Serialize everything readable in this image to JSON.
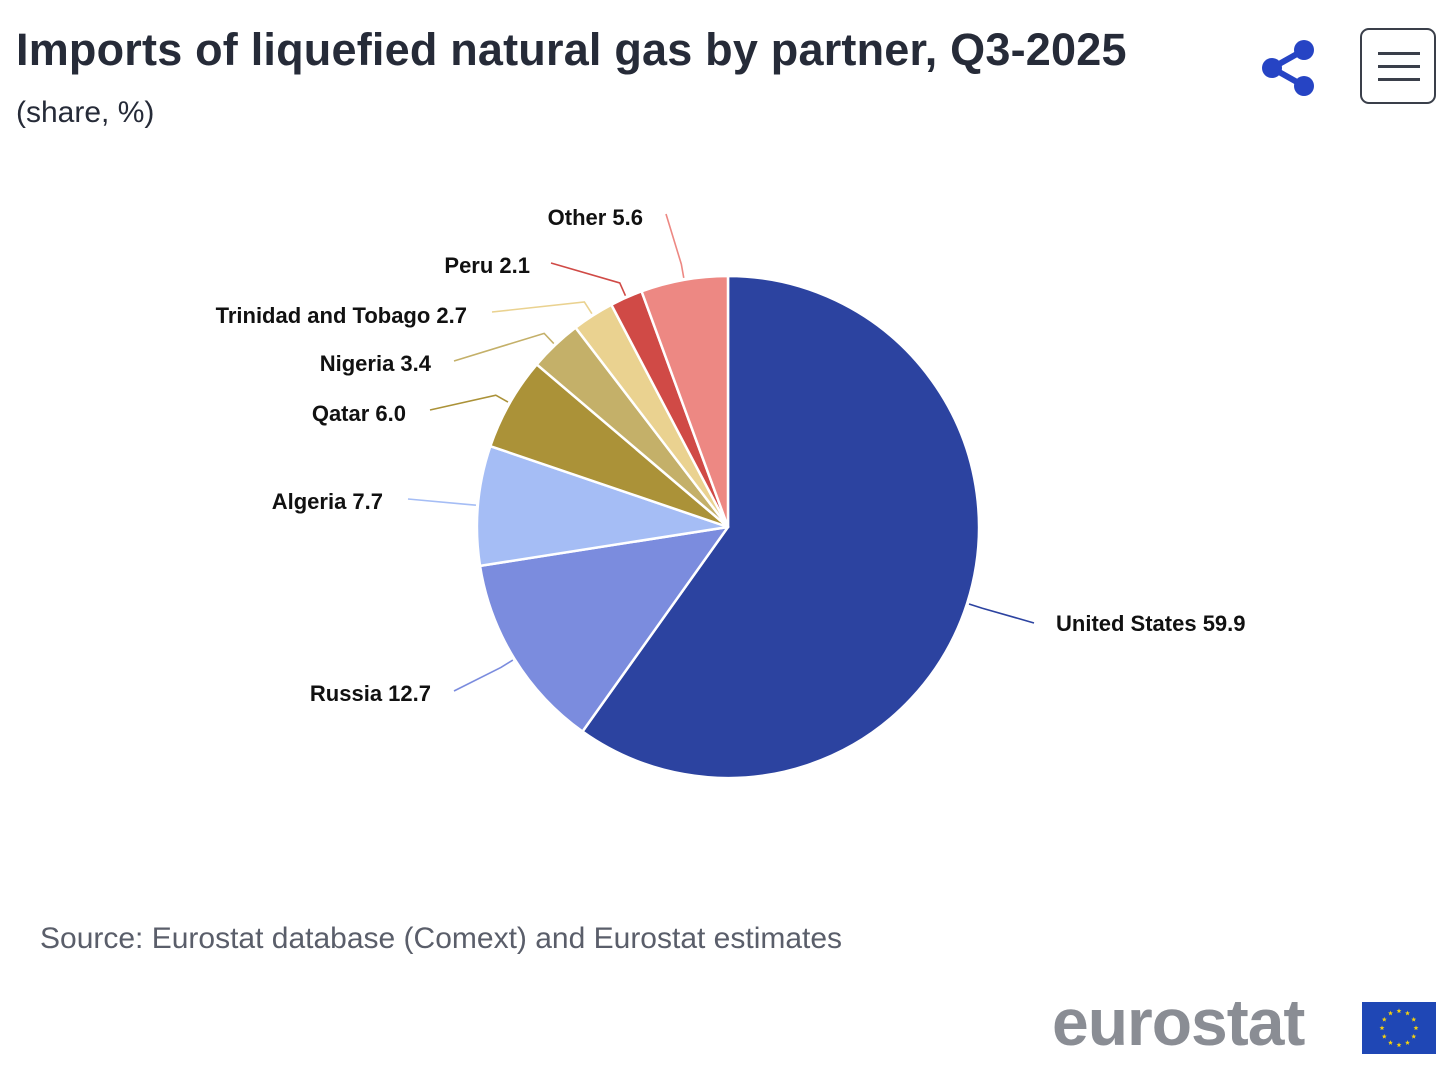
{
  "header": {
    "title": "Imports of liquefied natural gas by partner, Q3-2025",
    "subtitle": "(share, %)"
  },
  "icons": {
    "share": "share-icon",
    "menu": "hamburger-menu-icon"
  },
  "source": "Source: Eurostat database (Comext) and Eurostat estimates",
  "logo": {
    "text": "eurostat",
    "flag": "eu-flag-icon"
  },
  "chart_data": {
    "type": "pie",
    "title": "Imports of liquefied natural gas by partner, Q3-2025",
    "subtitle": "(share, %)",
    "start": "12 o'clock, clockwise",
    "slices": [
      {
        "label": "United States",
        "value": 59.9,
        "color": "#2c43a0"
      },
      {
        "label": "Russia",
        "value": 12.7,
        "color": "#7b8cde"
      },
      {
        "label": "Algeria",
        "value": 7.7,
        "color": "#a5bdf5"
      },
      {
        "label": "Qatar",
        "value": 6.0,
        "color": "#ab9238"
      },
      {
        "label": "Nigeria",
        "value": 3.4,
        "color": "#c4b069"
      },
      {
        "label": "Trinidad and Tobago",
        "value": 2.7,
        "color": "#ead290"
      },
      {
        "label": "Peru",
        "value": 2.1,
        "color": "#d04a46"
      },
      {
        "label": "Other",
        "value": 5.6,
        "color": "#ed8883"
      }
    ]
  }
}
